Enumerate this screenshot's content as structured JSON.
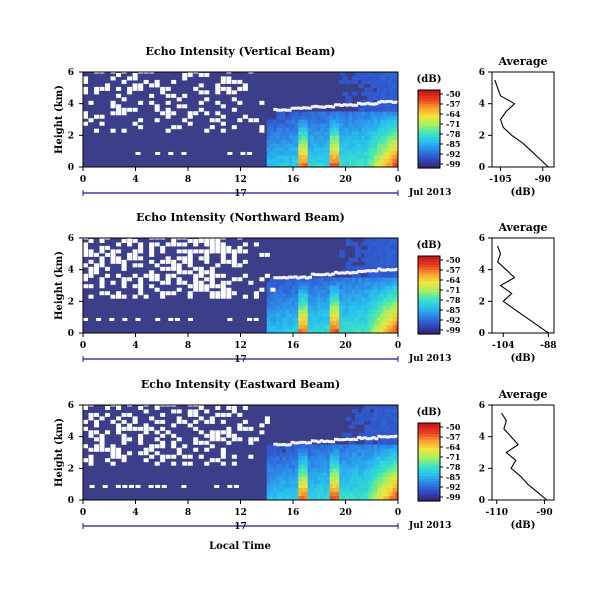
{
  "x_axis_title": "Local Time",
  "date_label": "Jul 2013",
  "day_label": "17",
  "colorbar_unit": "(dB)",
  "colorbar_ticks": [
    "-50",
    "-57",
    "-64",
    "-71",
    "-78",
    "-85",
    "-92",
    "-99"
  ],
  "colors": {
    "background_fill": "#3b3f8a",
    "masked": "#ffffff",
    "echo_layer": "#f0f0ff",
    "scale": [
      "#35277d",
      "#3050c8",
      "#2e86e8",
      "#28c2ef",
      "#3de6c0",
      "#a8f060",
      "#f2e63c",
      "#f8a030",
      "#ea4020",
      "#c81818"
    ]
  },
  "chart_data": [
    {
      "type": "heatmap",
      "title": "Echo Intensity (Vertical Beam)",
      "xlabel": "",
      "ylabel": "Height (km)",
      "x_ticks": [
        "0",
        "4",
        "8",
        "12",
        "16",
        "20",
        "0"
      ],
      "y_ticks": [
        "0",
        "2",
        "4",
        "6"
      ],
      "xlim": [
        0,
        24
      ],
      "ylim": [
        0,
        6
      ],
      "color_range": [
        -99,
        -50
      ],
      "layer_height_km": [
        3.6,
        3.7,
        3.8,
        3.9,
        4.0,
        4.1
      ],
      "average_profile": {
        "title": "Average",
        "xlabel": "(dB)",
        "x_ticks": [
          "-105",
          "-90"
        ],
        "y_ticks": [
          "0",
          "2",
          "4",
          "6"
        ],
        "xlim": [
          -108,
          -86
        ],
        "height_km": [
          0.0,
          0.5,
          1.0,
          1.5,
          2.0,
          2.5,
          3.0,
          3.5,
          4.0,
          4.5,
          5.0,
          5.5
        ],
        "value_db": [
          -88,
          -91,
          -94,
          -97,
          -101,
          -104,
          -105,
          -103,
          -100,
          -105,
          -106,
          -107
        ]
      }
    },
    {
      "type": "heatmap",
      "title": "Echo Intensity (Northward Beam)",
      "xlabel": "",
      "ylabel": "Height (km)",
      "x_ticks": [
        "0",
        "4",
        "8",
        "12",
        "16",
        "20",
        "0"
      ],
      "y_ticks": [
        "0",
        "2",
        "4",
        "6"
      ],
      "xlim": [
        0,
        24
      ],
      "ylim": [
        0,
        6
      ],
      "color_range": [
        -99,
        -50
      ],
      "layer_height_km": [
        3.5,
        3.5,
        3.7,
        3.8,
        3.9,
        4.0
      ],
      "average_profile": {
        "title": "Average",
        "xlabel": "(dB)",
        "x_ticks": [
          "-104",
          "-88"
        ],
        "y_ticks": [
          "0",
          "2",
          "4",
          "6"
        ],
        "xlim": [
          -108,
          -86
        ],
        "height_km": [
          0.0,
          0.5,
          1.0,
          1.5,
          2.0,
          2.5,
          3.0,
          3.5,
          4.0,
          4.5,
          5.0,
          5.5
        ],
        "value_db": [
          -88,
          -92,
          -96,
          -100,
          -104,
          -101,
          -105,
          -100,
          -103,
          -106,
          -105,
          -106
        ]
      }
    },
    {
      "type": "heatmap",
      "title": "Echo Intensity (Eastward Beam)",
      "xlabel": "Local Time",
      "ylabel": "Height (km)",
      "x_ticks": [
        "0",
        "4",
        "8",
        "12",
        "16",
        "20",
        "0"
      ],
      "y_ticks": [
        "0",
        "2",
        "4",
        "6"
      ],
      "xlim": [
        0,
        24
      ],
      "ylim": [
        0,
        6
      ],
      "color_range": [
        -99,
        -50
      ],
      "layer_height_km": [
        3.5,
        3.6,
        3.7,
        3.8,
        3.9,
        4.0
      ],
      "average_profile": {
        "title": "Average",
        "xlabel": "(dB)",
        "x_ticks": [
          "-110",
          "-90"
        ],
        "y_ticks": [
          "0",
          "2",
          "4",
          "6"
        ],
        "xlim": [
          -112,
          -86
        ],
        "height_km": [
          0.0,
          0.5,
          1.0,
          1.5,
          2.0,
          2.5,
          3.0,
          3.5,
          4.0,
          4.5,
          5.0,
          5.5
        ],
        "value_db": [
          -89,
          -93,
          -97,
          -100,
          -104,
          -102,
          -106,
          -101,
          -104,
          -107,
          -106,
          -108
        ]
      }
    }
  ]
}
